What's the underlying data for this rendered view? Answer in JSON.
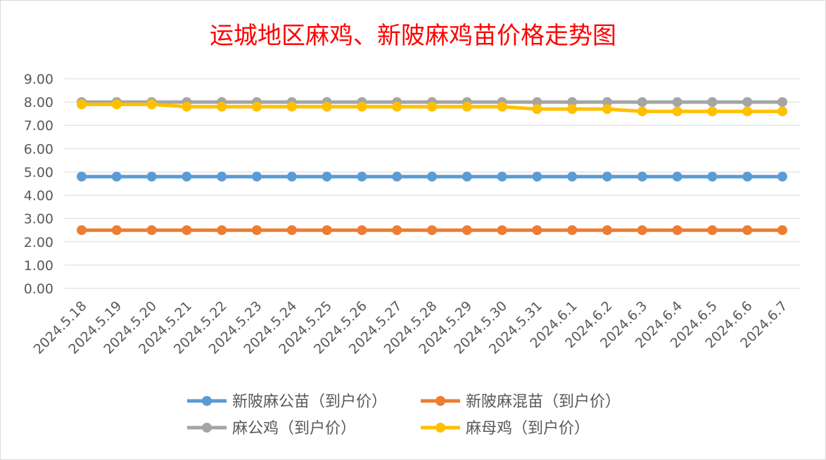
{
  "chart_data": {
    "type": "line",
    "title": "运城地区麻鸡、新陂麻鸡苗价格走势图",
    "xlabel": "",
    "ylabel": "",
    "ylim": [
      0,
      9
    ],
    "yticks": [
      "0.00",
      "1.00",
      "2.00",
      "3.00",
      "4.00",
      "5.00",
      "6.00",
      "7.00",
      "8.00",
      "9.00"
    ],
    "grid": true,
    "legend_position": "bottom",
    "categories": [
      "2024.5.18",
      "2024.5.19",
      "2024.5.20",
      "2024.5.21",
      "2024.5.22",
      "2024.5.23",
      "2024.5.24",
      "2024.5.25",
      "2024.5.26",
      "2024.5.27",
      "2024.5.28",
      "2024.5.29",
      "2024.5.30",
      "2024.5.31",
      "2024.6.1",
      "2024.6.2",
      "2024.6.3",
      "2024.6.4",
      "2024.6.5",
      "2024.6.6",
      "2024.6.7"
    ],
    "series": [
      {
        "name": "新陂麻公苗（到户价）",
        "color": "#5b9bd5",
        "values": [
          4.8,
          4.8,
          4.8,
          4.8,
          4.8,
          4.8,
          4.8,
          4.8,
          4.8,
          4.8,
          4.8,
          4.8,
          4.8,
          4.8,
          4.8,
          4.8,
          4.8,
          4.8,
          4.8,
          4.8,
          4.8
        ]
      },
      {
        "name": "新陂麻混苗（到户价）",
        "color": "#ed7d31",
        "values": [
          2.5,
          2.5,
          2.5,
          2.5,
          2.5,
          2.5,
          2.5,
          2.5,
          2.5,
          2.5,
          2.5,
          2.5,
          2.5,
          2.5,
          2.5,
          2.5,
          2.5,
          2.5,
          2.5,
          2.5,
          2.5
        ]
      },
      {
        "name": "麻公鸡（到户价）",
        "color": "#a5a5a5",
        "values": [
          8.0,
          8.0,
          8.0,
          8.0,
          8.0,
          8.0,
          8.0,
          8.0,
          8.0,
          8.0,
          8.0,
          8.0,
          8.0,
          8.0,
          8.0,
          8.0,
          8.0,
          8.0,
          8.0,
          8.0,
          8.0
        ]
      },
      {
        "name": "麻母鸡（到户价）",
        "color": "#ffc000",
        "values": [
          7.9,
          7.9,
          7.9,
          7.8,
          7.8,
          7.8,
          7.8,
          7.8,
          7.8,
          7.8,
          7.8,
          7.8,
          7.8,
          7.7,
          7.7,
          7.7,
          7.6,
          7.6,
          7.6,
          7.6,
          7.6
        ]
      }
    ]
  }
}
